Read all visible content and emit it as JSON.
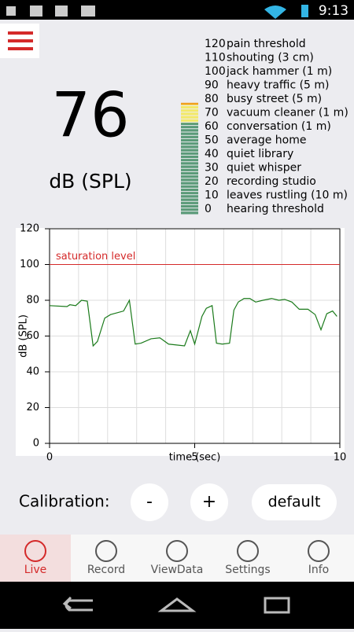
{
  "status_bar": {
    "time": "9:13"
  },
  "level": {
    "value": 76,
    "unit": "dB (SPL)"
  },
  "scale": [
    {
      "value": 120,
      "label": "pain threshold"
    },
    {
      "value": 110,
      "label": "shouting (3 cm)"
    },
    {
      "value": 100,
      "label": "jack hammer (1 m)"
    },
    {
      "value": 90,
      "label": "heavy traffic (5 m)"
    },
    {
      "value": 80,
      "label": "busy street (5 m)"
    },
    {
      "value": 70,
      "label": "vacuum cleaner (1 m)"
    },
    {
      "value": 60,
      "label": "conversation (1 m)"
    },
    {
      "value": 50,
      "label": "average home"
    },
    {
      "value": 40,
      "label": "quiet library"
    },
    {
      "value": 30,
      "label": "quiet whisper"
    },
    {
      "value": 20,
      "label": "recording studio"
    },
    {
      "value": 10,
      "label": "leaves rustling (10 m)"
    },
    {
      "value": 0,
      "label": "hearing threshold"
    }
  ],
  "chart_data": {
    "type": "line",
    "x_label": "time (sec)",
    "y_label": "dB (SPL)",
    "x": [
      0,
      0.6,
      0.7,
      0.9,
      1.1,
      1.3,
      1.5,
      1.65,
      1.9,
      2.1,
      2.55,
      2.75,
      2.95,
      3.15,
      3.5,
      3.8,
      4.1,
      4.65,
      4.85,
      5.0,
      5.25,
      5.4,
      5.6,
      5.75,
      5.95,
      6.2,
      6.35,
      6.5,
      6.7,
      6.9,
      7.1,
      7.35,
      7.65,
      7.9,
      8.1,
      8.35,
      8.6,
      8.9,
      9.15,
      9.35,
      9.55,
      9.75,
      9.9
    ],
    "series": [
      {
        "color": "#1a7a1a",
        "values": [
          77,
          76.5,
          77.5,
          77,
          80,
          79.5,
          54.5,
          57,
          70,
          72,
          74,
          80,
          55.5,
          56,
          58.5,
          59,
          55.5,
          54.5,
          63,
          55.5,
          71,
          75.5,
          77,
          56,
          55.5,
          56,
          74.5,
          79,
          81,
          81,
          79,
          80,
          81,
          80,
          80.5,
          79,
          75,
          75,
          72,
          63.5,
          72.5,
          74,
          71
        ]
      }
    ],
    "xlim": [
      0,
      10
    ],
    "ylim": [
      0,
      120
    ],
    "xticks": [
      0,
      5,
      10
    ],
    "yticks": [
      0,
      20,
      40,
      60,
      80,
      100,
      120
    ],
    "x_grid": [
      1,
      2,
      3,
      4,
      5,
      6,
      7,
      8,
      9
    ],
    "grid": true,
    "reference_line": {
      "value": 100,
      "label": "saturation level",
      "color": "#d42a2a"
    }
  },
  "calibration": {
    "label": "Calibration:",
    "minus": "-",
    "plus": "+",
    "default": "default"
  },
  "tabs": [
    "Live",
    "Record",
    "ViewData",
    "Settings",
    "Info"
  ]
}
